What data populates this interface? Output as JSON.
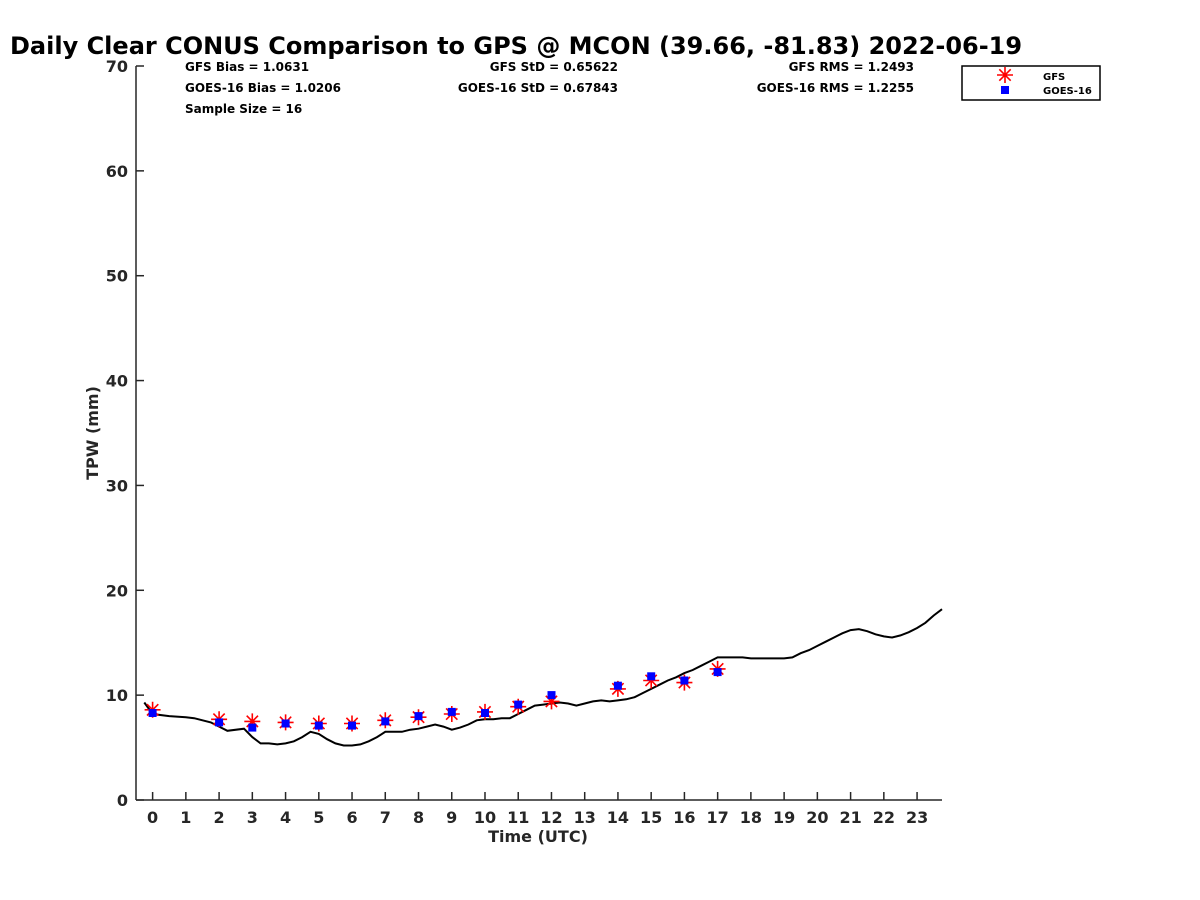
{
  "chart_data": {
    "type": "line",
    "title": "Daily Clear CONUS Comparison to GPS @ MCON (39.66, -81.83) 2022-06-19",
    "xlabel": "Time (UTC)",
    "ylabel": "TPW (mm)",
    "xlim": [
      -0.5,
      23.75
    ],
    "ylim": [
      0,
      70
    ],
    "x_ticks": [
      "0",
      "1",
      "2",
      "3",
      "4",
      "5",
      "6",
      "7",
      "8",
      "9",
      "10",
      "11",
      "12",
      "13",
      "14",
      "15",
      "16",
      "17",
      "18",
      "19",
      "20",
      "21",
      "22",
      "23"
    ],
    "y_ticks": [
      "0",
      "10",
      "20",
      "30",
      "40",
      "50",
      "60",
      "70"
    ],
    "stats": {
      "gfs_bias": "GFS Bias = 1.0631",
      "gfs_std": "GFS StD = 0.65622",
      "gfs_rms": "GFS RMS = 1.2493",
      "goes_bias": "GOES-16 Bias = 1.0206",
      "goes_std": "GOES-16 StD = 0.67843",
      "goes_rms": "GOES-16 RMS = 1.2255",
      "sample_size": "Sample Size = 16"
    },
    "legend": {
      "placement": "top-right",
      "entries": [
        "GFS",
        "GOES-16"
      ]
    },
    "colors": {
      "gps": "#000000",
      "gfs": "#ff0000",
      "goes": "#0000ff"
    },
    "series": [
      {
        "style": "line",
        "x": [
          -0.25,
          0,
          0.5,
          1,
          1.25,
          1.75,
          2,
          2.25,
          2.75,
          3,
          3.25,
          3.5,
          3.75,
          4,
          4.25,
          4.5,
          4.75,
          5,
          5.25,
          5.5,
          5.75,
          6,
          6.25,
          6.5,
          6.75,
          7,
          7.25,
          7.5,
          7.75,
          8,
          8.25,
          8.5,
          8.75,
          9,
          9.25,
          9.5,
          9.75,
          10,
          10.25,
          10.5,
          10.75,
          11,
          11.25,
          11.5,
          11.75,
          12,
          12.25,
          12.5,
          12.75,
          13,
          13.25,
          13.5,
          13.75,
          14,
          14.25,
          14.5,
          14.75,
          15,
          15.25,
          15.5,
          15.75,
          16,
          16.25,
          16.5,
          16.75,
          17,
          17.25,
          17.5,
          17.75,
          18,
          18.25,
          18.5,
          18.75,
          19,
          19.25,
          19.5,
          19.75,
          20,
          20.25,
          20.5,
          20.75,
          21,
          21.25,
          21.5,
          21.75,
          22,
          22.25,
          22.5,
          22.75,
          23,
          23.25,
          23.5,
          23.75
        ],
        "y": [
          9.3,
          8.2,
          8.0,
          7.9,
          7.8,
          7.4,
          7.0,
          6.6,
          6.8,
          6.0,
          5.4,
          5.4,
          5.3,
          5.4,
          5.6,
          6.0,
          6.5,
          6.3,
          5.8,
          5.4,
          5.2,
          5.2,
          5.3,
          5.6,
          6.0,
          6.5,
          6.5,
          6.5,
          6.7,
          6.8,
          7.0,
          7.2,
          7.0,
          6.7,
          6.9,
          7.2,
          7.6,
          7.7,
          7.7,
          7.8,
          7.8,
          8.2,
          8.6,
          9.0,
          9.1,
          9.2,
          9.3,
          9.2,
          9.0,
          9.2,
          9.4,
          9.5,
          9.4,
          9.5,
          9.6,
          9.8,
          10.2,
          10.6,
          11.0,
          11.4,
          11.7,
          12.1,
          12.4,
          12.8,
          13.2,
          13.6,
          13.6,
          13.6,
          13.6,
          13.5,
          13.5,
          13.5,
          13.5,
          13.5,
          13.6,
          14.0,
          14.3,
          14.7,
          15.1,
          15.5,
          15.9,
          16.2,
          16.3,
          16.1,
          15.8,
          15.6,
          15.5,
          15.7,
          16.0,
          16.4,
          16.9,
          17.6,
          18.2
        ]
      },
      {
        "name": "GFS",
        "style": "asterisk",
        "x": [
          0,
          2,
          3,
          4,
          5,
          6,
          7,
          8,
          9,
          10,
          11,
          12,
          14,
          15,
          16,
          17
        ],
        "y": [
          8.6,
          7.7,
          7.5,
          7.4,
          7.3,
          7.3,
          7.6,
          7.9,
          8.2,
          8.4,
          8.9,
          9.4,
          10.6,
          11.4,
          11.2,
          12.5
        ]
      },
      {
        "name": "GOES-16",
        "style": "square",
        "x": [
          0,
          2,
          3,
          4,
          5,
          6,
          7,
          8,
          9,
          10,
          11,
          12,
          14,
          15,
          16,
          17
        ],
        "y": [
          8.3,
          7.4,
          6.9,
          7.3,
          7.1,
          7.1,
          7.5,
          8.0,
          8.4,
          8.3,
          9.1,
          10.0,
          10.9,
          11.8,
          11.4,
          12.2
        ]
      }
    ]
  }
}
